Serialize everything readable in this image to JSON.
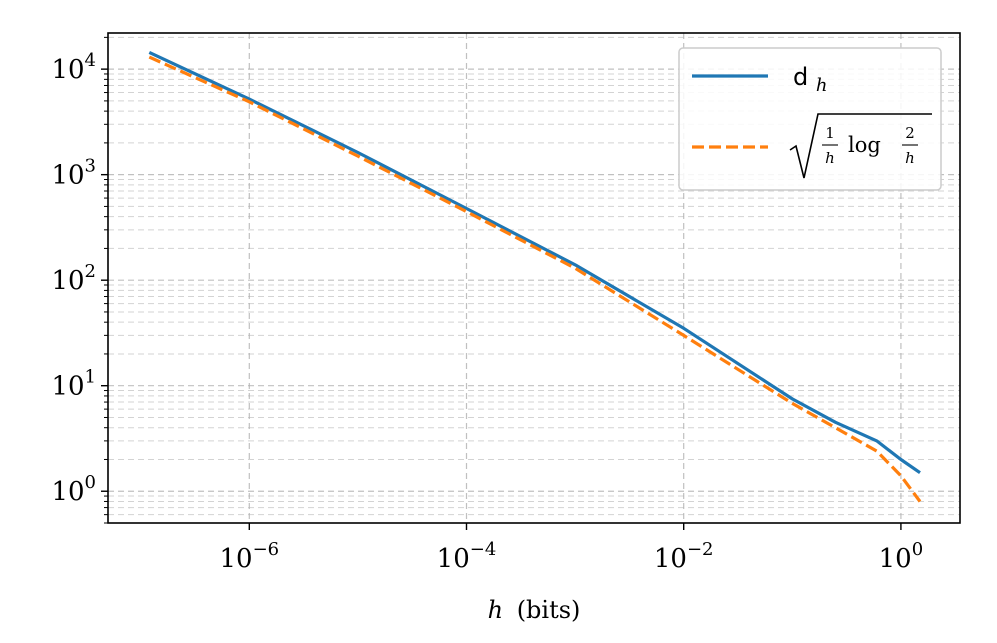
{
  "chart_data": {
    "type": "line",
    "title": "",
    "xlabel": "(bits)",
    "xlabel_var": "h",
    "ylabel": "",
    "xscale": "log",
    "yscale": "log",
    "xlim": [
      5e-08,
      3.5
    ],
    "ylim": [
      0.5,
      22000
    ],
    "grid": true,
    "legend_position": "upper right",
    "x_ticks": [
      {
        "base": "10",
        "exp": "−6",
        "value": 1e-06
      },
      {
        "base": "10",
        "exp": "−4",
        "value": 0.0001
      },
      {
        "base": "10",
        "exp": "−2",
        "value": 0.01
      },
      {
        "base": "10",
        "exp": "0",
        "value": 1
      }
    ],
    "y_ticks": [
      {
        "base": "10",
        "exp": "0",
        "value": 1
      },
      {
        "base": "10",
        "exp": "1",
        "value": 10
      },
      {
        "base": "10",
        "exp": "2",
        "value": 100
      },
      {
        "base": "10",
        "exp": "3",
        "value": 1000
      },
      {
        "base": "10",
        "exp": "4",
        "value": 10000
      }
    ],
    "series": [
      {
        "name": "d",
        "name_sub": "h",
        "color": "#1f77b4",
        "style": "solid",
        "x": [
          1.2e-07,
          1e-06,
          1e-05,
          0.0001,
          0.001,
          0.01,
          0.1,
          0.25,
          0.6,
          1.0,
          1.5
        ],
        "y": [
          14400,
          5200,
          1620,
          478,
          140,
          35,
          7.5,
          4.5,
          3.0,
          2.0,
          1.5
        ]
      },
      {
        "name": "√(1/h log 2/h)",
        "color": "#ff7f0e",
        "style": "dashed",
        "x": [
          1.2e-07,
          1e-06,
          1e-05,
          0.0001,
          0.001,
          0.01,
          0.1,
          0.25,
          0.6,
          1.0,
          1.5
        ],
        "y": [
          13000,
          4900,
          1500,
          447,
          130,
          30,
          6.8,
          4.0,
          2.4,
          1.4,
          0.8
        ]
      }
    ],
    "legend": {
      "entry1_main": "d",
      "entry1_sub": "h",
      "entry2_num1": "1",
      "entry2_den1": "h",
      "entry2_log": "log",
      "entry2_num2": "2",
      "entry2_den2": "h"
    }
  }
}
